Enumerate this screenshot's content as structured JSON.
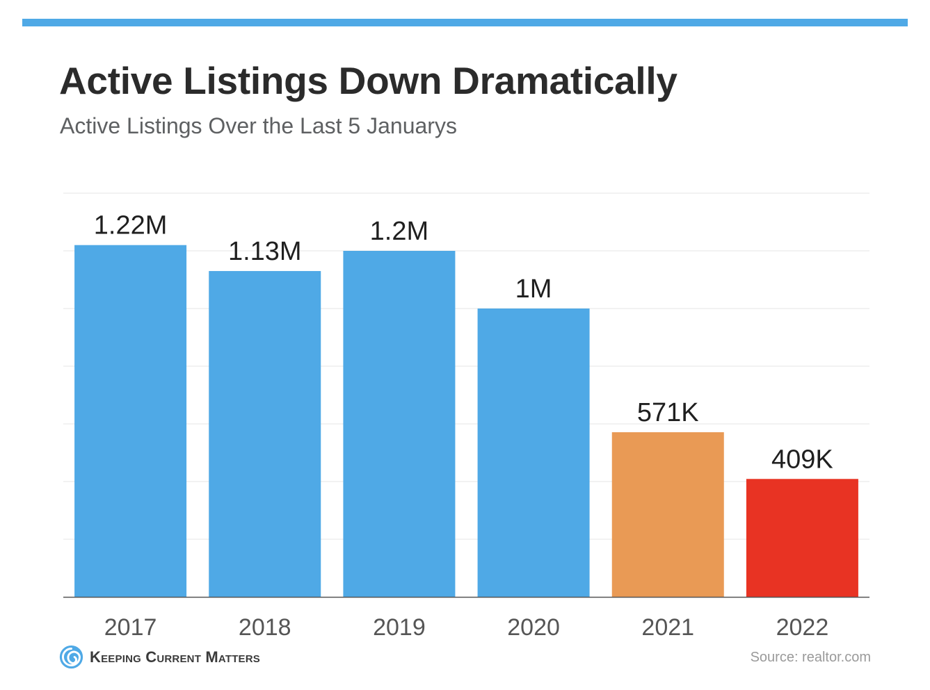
{
  "header": {
    "title": "Active Listings Down Dramatically",
    "subtitle": "Active Listings Over the Last 5 Januarys"
  },
  "footer": {
    "brand": "Keeping Current Matters",
    "source": "Source: realtor.com"
  },
  "colors": {
    "accent_bar": "#4fa9e6",
    "bar_default": "#4fa9e6",
    "bar_2021": "#e99a55",
    "bar_2022": "#e83323",
    "grid": "#e6e6e6",
    "axis": "#555555"
  },
  "chart_data": {
    "type": "bar",
    "title": "Active Listings Down Dramatically",
    "subtitle": "Active Listings Over the Last 5 Januarys",
    "categories": [
      "2017",
      "2018",
      "2019",
      "2020",
      "2021",
      "2022"
    ],
    "values": [
      1220000,
      1130000,
      1200000,
      1000000,
      571000,
      409000
    ],
    "labels": [
      "1.22M",
      "1.13M",
      "1.2M",
      "1M",
      "571K",
      "409K"
    ],
    "bar_colors": [
      "#4fa9e6",
      "#4fa9e6",
      "#4fa9e6",
      "#4fa9e6",
      "#e99a55",
      "#e83323"
    ],
    "ylim": [
      0,
      1400000
    ],
    "grid": true,
    "legend": "none"
  }
}
